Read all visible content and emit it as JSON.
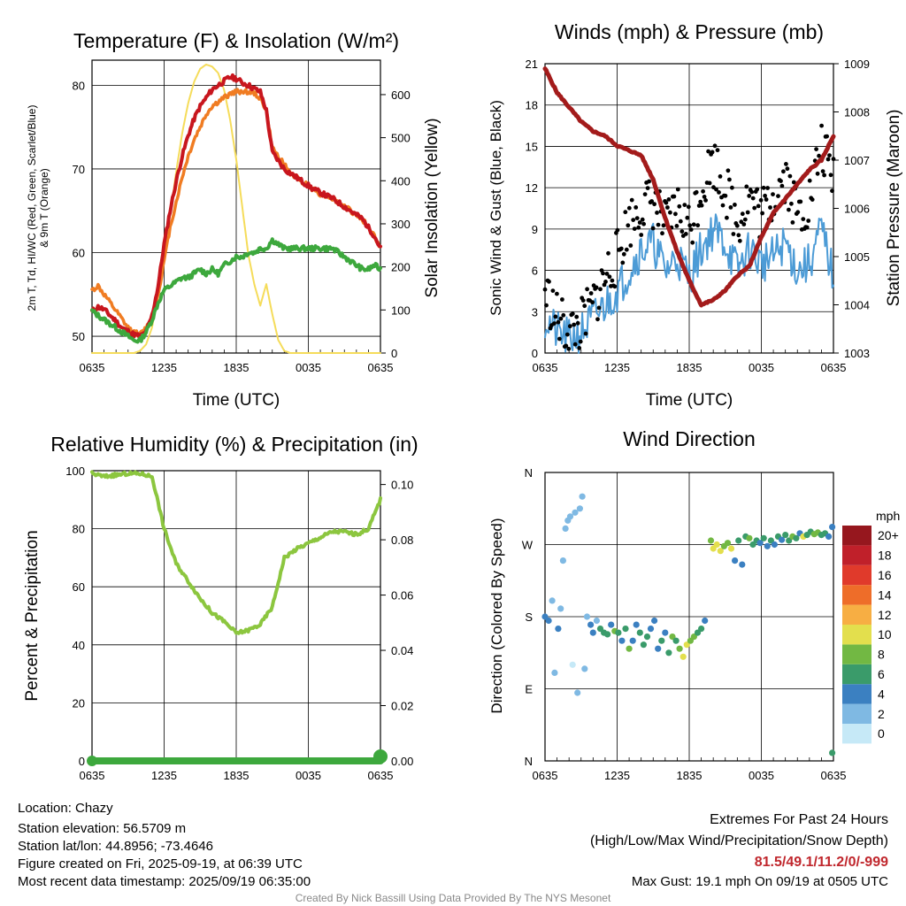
{
  "chart_data": [
    {
      "type": "line",
      "title": "Temperature (F) & Insolation (W/m²)",
      "xlabel": "Time (UTC)",
      "ylabel": "2m T, Td, HI/WC (Red, Green, Scarlet/Blue) & 9m T (Orange)",
      "ylabel_right": "Solar Insolation (Yellow)",
      "x_ticks": [
        "0635",
        "1235",
        "1835",
        "0035",
        "0635"
      ],
      "ylim": [
        48,
        83
      ],
      "y_ticks": [
        "50",
        "60",
        "70",
        "80"
      ],
      "ylim_right": [
        0,
        680
      ],
      "y_ticks_right": [
        "0",
        "100",
        "200",
        "300",
        "400",
        "500",
        "600"
      ],
      "x_hours": [
        0,
        0.5,
        1,
        1.5,
        2,
        2.5,
        3,
        3.5,
        4,
        4.5,
        5,
        5.5,
        6,
        6.5,
        7,
        7.5,
        8,
        8.5,
        9,
        9.5,
        10,
        10.5,
        11,
        11.5,
        12,
        12.5,
        13,
        13.5,
        14,
        14.5,
        15,
        15.5,
        16,
        16.5,
        17,
        17.5,
        18,
        18.5,
        19,
        19.5,
        20,
        20.5,
        21,
        21.5,
        22,
        22.5,
        23,
        23.5,
        24
      ],
      "series": [
        {
          "color": "#c8161e",
          "values": [
            53,
            53.5,
            53.2,
            52.5,
            51.8,
            51,
            50.6,
            50.2,
            50,
            50.5,
            52.5,
            56,
            61,
            65,
            68.5,
            71.5,
            74,
            76,
            77.5,
            78.5,
            79.5,
            80,
            80.5,
            81,
            80.8,
            80.3,
            80,
            79.6,
            79.2,
            77,
            72,
            71,
            70,
            69.5,
            69,
            68.5,
            68,
            67.5,
            67.2,
            66.8,
            66.5,
            66,
            65.5,
            65,
            64.5,
            64,
            63,
            62,
            60.5
          ]
        },
        {
          "color": "#f07c22",
          "values": [
            55.5,
            56,
            55,
            54,
            53,
            52,
            51,
            50.5,
            50.2,
            51,
            52,
            55,
            59,
            63,
            66,
            69,
            71.5,
            73.5,
            75,
            76.5,
            77.5,
            78,
            78.5,
            79,
            79.2,
            79.3,
            79.2,
            79,
            78.5,
            77,
            72.5,
            71.5,
            70.5,
            69.5,
            69,
            68.5,
            68,
            67.5,
            67,
            66.8,
            66.5,
            66,
            65.5,
            65,
            64.5,
            64,
            63,
            62,
            60.5
          ]
        },
        {
          "color": "#3da83d",
          "values": [
            53,
            52.5,
            52,
            51.5,
            51,
            50.5,
            50,
            49.5,
            49.5,
            50.5,
            52,
            54,
            55.5,
            56,
            56.5,
            57,
            57,
            57.5,
            58,
            57.5,
            58,
            57.5,
            58.5,
            59,
            59.5,
            59.5,
            60,
            60,
            60.5,
            60.5,
            61.5,
            61,
            60.5,
            60.5,
            60.5,
            60.5,
            60.5,
            60.5,
            60.5,
            60.5,
            60.5,
            60,
            59.5,
            59,
            58.5,
            58,
            58,
            58.5,
            58
          ]
        },
        {
          "color": "#f5dc5a",
          "values": [
            0,
            0,
            0,
            0,
            0,
            0,
            0,
            0,
            5,
            20,
            60,
            140,
            230,
            320,
            420,
            510,
            580,
            630,
            660,
            670,
            665,
            650,
            610,
            540,
            450,
            340,
            230,
            160,
            110,
            160,
            90,
            30,
            5,
            0,
            0,
            0,
            0,
            0,
            0,
            0,
            0,
            0,
            0,
            0,
            0,
            0,
            0,
            0,
            0
          ]
        }
      ]
    },
    {
      "type": "line",
      "title": "Winds (mph) & Pressure (mb)",
      "xlabel": "Time (UTC)",
      "ylabel": "Sonic Wind & Gust (Blue, Black)",
      "ylabel_right": "Station Pressure (Maroon)",
      "x_ticks": [
        "0635",
        "1235",
        "1835",
        "0035",
        "0635"
      ],
      "ylim": [
        0,
        21
      ],
      "y_ticks": [
        "0",
        "3",
        "6",
        "9",
        "12",
        "15",
        "18",
        "21"
      ],
      "ylim_right": [
        1003,
        1009
      ],
      "y_ticks_right": [
        "1003",
        "1004",
        "1005",
        "1006",
        "1007",
        "1008",
        "1009"
      ],
      "x_hours": [
        0,
        1,
        2,
        3,
        4,
        5,
        6,
        7,
        8,
        9,
        10,
        11,
        12,
        13,
        14,
        15,
        16,
        17,
        18,
        19,
        20,
        21,
        22,
        23,
        24
      ],
      "series": [
        {
          "color": "#4c9bd6",
          "values": [
            2.5,
            1.5,
            1,
            1.5,
            2.5,
            3.5,
            4.5,
            6,
            7.5,
            8,
            6,
            7,
            5.5,
            7.5,
            9,
            8,
            6,
            7.5,
            6.5,
            7,
            8,
            6,
            6.5,
            9,
            5.5
          ]
        },
        {
          "color": "#000000",
          "values": [
            4.5,
            2.5,
            1.5,
            2,
            3.5,
            5.5,
            7,
            9.5,
            10.5,
            11,
            9,
            10.5,
            9,
            12,
            14,
            12,
            9.5,
            11.5,
            10,
            11.5,
            13,
            10,
            11,
            15,
            12.5
          ]
        },
        {
          "color": "#a31b1b",
          "values": [
            1008.9,
            1008.4,
            1008.1,
            1007.8,
            1007.6,
            1007.5,
            1007.3,
            1007.2,
            1007.1,
            1006.6,
            1005.8,
            1005.1,
            1004.5,
            1004.0,
            1004.1,
            1004.3,
            1004.6,
            1004.8,
            1005.4,
            1005.9,
            1006.2,
            1006.5,
            1006.8,
            1007.0,
            1007.5
          ]
        }
      ]
    },
    {
      "type": "line",
      "title": "Relative Humidity (%) & Precipitation (in)",
      "xlabel": "",
      "ylabel": "Percent & Precipitation",
      "x_ticks": [
        "0635",
        "1235",
        "1835",
        "0035",
        "0635"
      ],
      "ylim": [
        0,
        100
      ],
      "y_ticks": [
        "0",
        "20",
        "40",
        "60",
        "80",
        "100"
      ],
      "ylim_right": [
        0,
        0.105
      ],
      "y_ticks_right": [
        "0.00",
        "0.02",
        "0.04",
        "0.06",
        "0.08",
        "0.10"
      ],
      "x_hours": [
        0,
        1,
        2,
        3,
        4,
        5,
        6,
        7,
        8,
        9,
        10,
        11,
        12,
        13,
        14,
        15,
        16,
        17,
        18,
        19,
        20,
        21,
        22,
        23,
        24
      ],
      "series": [
        {
          "color": "#8cc63f",
          "values": [
            99,
            98,
            98.5,
            99,
            99,
            98,
            80,
            68,
            62,
            56,
            51,
            48,
            44,
            45,
            47,
            53,
            70,
            73,
            75,
            77,
            79,
            79,
            78,
            80,
            90
          ]
        },
        {
          "color": "#3da83d",
          "values": [
            0,
            0,
            0,
            0,
            0,
            0,
            0,
            0,
            0,
            0,
            0,
            0,
            0,
            0,
            0,
            0,
            0,
            0,
            0,
            0,
            0,
            0,
            0,
            0,
            0
          ]
        }
      ]
    },
    {
      "type": "scatter",
      "title": "Wind Direction",
      "ylabel": "Direction (Colored By Speed)",
      "x_ticks": [
        "0635",
        "1235",
        "1835",
        "0035",
        "0635"
      ],
      "y_ticks": [
        "N",
        "E",
        "S",
        "W",
        "N"
      ],
      "ylim": [
        0,
        360
      ],
      "legend_title": "mph",
      "legend_labels": [
        "0",
        "2",
        "4",
        "6",
        "8",
        "10",
        "12",
        "14",
        "16",
        "18",
        "20+"
      ],
      "legend_colors": [
        "#c6e9f7",
        "#7fb9e3",
        "#3b80c1",
        "#3a9b6a",
        "#72b843",
        "#e3df4d",
        "#f7ae43",
        "#ee6d29",
        "#e03a2b",
        "#c0202a",
        "#96171e"
      ],
      "points": [
        {
          "x": 0.0,
          "y": 180,
          "s": 3
        },
        {
          "x": 0.3,
          "y": 175,
          "s": 4
        },
        {
          "x": 0.6,
          "y": 200,
          "s": 1
        },
        {
          "x": 0.8,
          "y": 110,
          "s": 2
        },
        {
          "x": 1.1,
          "y": 165,
          "s": 3
        },
        {
          "x": 1.3,
          "y": 190,
          "s": 2
        },
        {
          "x": 1.5,
          "y": 250,
          "s": 1
        },
        {
          "x": 1.7,
          "y": 290,
          "s": 1
        },
        {
          "x": 1.9,
          "y": 300,
          "s": 1
        },
        {
          "x": 2.1,
          "y": 305,
          "s": 2
        },
        {
          "x": 2.3,
          "y": 120,
          "s": 0
        },
        {
          "x": 2.5,
          "y": 310,
          "s": 2
        },
        {
          "x": 2.7,
          "y": 85,
          "s": 1
        },
        {
          "x": 2.9,
          "y": 315,
          "s": 1
        },
        {
          "x": 3.1,
          "y": 330,
          "s": 2
        },
        {
          "x": 3.3,
          "y": 115,
          "s": 1
        },
        {
          "x": 3.5,
          "y": 180,
          "s": 2
        },
        {
          "x": 3.8,
          "y": 170,
          "s": 4
        },
        {
          "x": 4.0,
          "y": 160,
          "s": 3
        },
        {
          "x": 4.3,
          "y": 175,
          "s": 2
        },
        {
          "x": 4.6,
          "y": 165,
          "s": 5
        },
        {
          "x": 4.9,
          "y": 160,
          "s": 6
        },
        {
          "x": 5.2,
          "y": 158,
          "s": 5
        },
        {
          "x": 5.5,
          "y": 170,
          "s": 3
        },
        {
          "x": 5.8,
          "y": 162,
          "s": 7
        },
        {
          "x": 6.1,
          "y": 160,
          "s": 6
        },
        {
          "x": 6.4,
          "y": 150,
          "s": 4
        },
        {
          "x": 6.7,
          "y": 165,
          "s": 5
        },
        {
          "x": 7.0,
          "y": 140,
          "s": 8
        },
        {
          "x": 7.3,
          "y": 150,
          "s": 3
        },
        {
          "x": 7.6,
          "y": 170,
          "s": 4
        },
        {
          "x": 7.9,
          "y": 160,
          "s": 5
        },
        {
          "x": 8.2,
          "y": 145,
          "s": 6
        },
        {
          "x": 8.5,
          "y": 155,
          "s": 5
        },
        {
          "x": 8.8,
          "y": 165,
          "s": 4
        },
        {
          "x": 9.1,
          "y": 175,
          "s": 3
        },
        {
          "x": 9.4,
          "y": 140,
          "s": 4
        },
        {
          "x": 9.7,
          "y": 150,
          "s": 6
        },
        {
          "x": 10.0,
          "y": 160,
          "s": 3
        },
        {
          "x": 10.3,
          "y": 135,
          "s": 5
        },
        {
          "x": 10.6,
          "y": 155,
          "s": 7
        },
        {
          "x": 10.9,
          "y": 150,
          "s": 6
        },
        {
          "x": 11.2,
          "y": 140,
          "s": 8
        },
        {
          "x": 11.5,
          "y": 130,
          "s": 9
        },
        {
          "x": 11.8,
          "y": 145,
          "s": 10
        },
        {
          "x": 12.1,
          "y": 150,
          "s": 8
        },
        {
          "x": 12.4,
          "y": 155,
          "s": 7
        },
        {
          "x": 12.7,
          "y": 160,
          "s": 6
        },
        {
          "x": 13.0,
          "y": 165,
          "s": 5
        },
        {
          "x": 13.3,
          "y": 175,
          "s": 4
        },
        {
          "x": 13.8,
          "y": 275,
          "s": 7
        },
        {
          "x": 14.0,
          "y": 265,
          "s": 9
        },
        {
          "x": 14.3,
          "y": 270,
          "s": 10
        },
        {
          "x": 14.6,
          "y": 262,
          "s": 9
        },
        {
          "x": 14.9,
          "y": 268,
          "s": 8
        },
        {
          "x": 15.2,
          "y": 272,
          "s": 7
        },
        {
          "x": 15.5,
          "y": 265,
          "s": 10
        },
        {
          "x": 15.8,
          "y": 250,
          "s": 3
        },
        {
          "x": 16.1,
          "y": 275,
          "s": 6
        },
        {
          "x": 16.4,
          "y": 245,
          "s": 4
        },
        {
          "x": 16.7,
          "y": 280,
          "s": 6
        },
        {
          "x": 17.0,
          "y": 278,
          "s": 7
        },
        {
          "x": 17.3,
          "y": 270,
          "s": 5
        },
        {
          "x": 17.6,
          "y": 275,
          "s": 6
        },
        {
          "x": 17.9,
          "y": 272,
          "s": 4
        },
        {
          "x": 18.2,
          "y": 278,
          "s": 5
        },
        {
          "x": 18.5,
          "y": 268,
          "s": 3
        },
        {
          "x": 18.8,
          "y": 275,
          "s": 6
        },
        {
          "x": 19.1,
          "y": 270,
          "s": 4
        },
        {
          "x": 19.4,
          "y": 280,
          "s": 5
        },
        {
          "x": 19.7,
          "y": 276,
          "s": 3
        },
        {
          "x": 20.0,
          "y": 282,
          "s": 6
        },
        {
          "x": 20.3,
          "y": 275,
          "s": 5
        },
        {
          "x": 20.6,
          "y": 280,
          "s": 7
        },
        {
          "x": 20.9,
          "y": 278,
          "s": 6
        },
        {
          "x": 21.2,
          "y": 284,
          "s": 4
        },
        {
          "x": 21.5,
          "y": 280,
          "s": 9
        },
        {
          "x": 21.8,
          "y": 282,
          "s": 6
        },
        {
          "x": 22.1,
          "y": 286,
          "s": 5
        },
        {
          "x": 22.4,
          "y": 283,
          "s": 7
        },
        {
          "x": 22.7,
          "y": 285,
          "s": 8
        },
        {
          "x": 23.0,
          "y": 282,
          "s": 6
        },
        {
          "x": 23.3,
          "y": 284,
          "s": 5
        },
        {
          "x": 23.6,
          "y": 280,
          "s": 4
        },
        {
          "x": 23.9,
          "y": 292,
          "s": 3
        },
        {
          "x": 23.9,
          "y": 10,
          "s": 6
        }
      ]
    }
  ],
  "footer": {
    "location": "Location: Chazy",
    "elevation": "Station elevation: 56.5709 m",
    "latlon": "Station lat/lon: 44.8956; -73.4646",
    "created": "Figure created on Fri, 2025-09-19, at 06:39 UTC",
    "recent": "Most recent data timestamp: 2025/09/19 06:35:00",
    "extremes_title": "Extremes For Past 24 Hours",
    "extremes_sub": "(High/Low/Max Wind/Precipitation/Snow Depth)",
    "extremes_values": "81.5/49.1/11.2/0/-999",
    "max_gust": "Max Gust: 19.1 mph On 09/19 at 0505 UTC",
    "credit": "Created By Nick Bassill Using Data Provided By The NYS Mesonet"
  }
}
